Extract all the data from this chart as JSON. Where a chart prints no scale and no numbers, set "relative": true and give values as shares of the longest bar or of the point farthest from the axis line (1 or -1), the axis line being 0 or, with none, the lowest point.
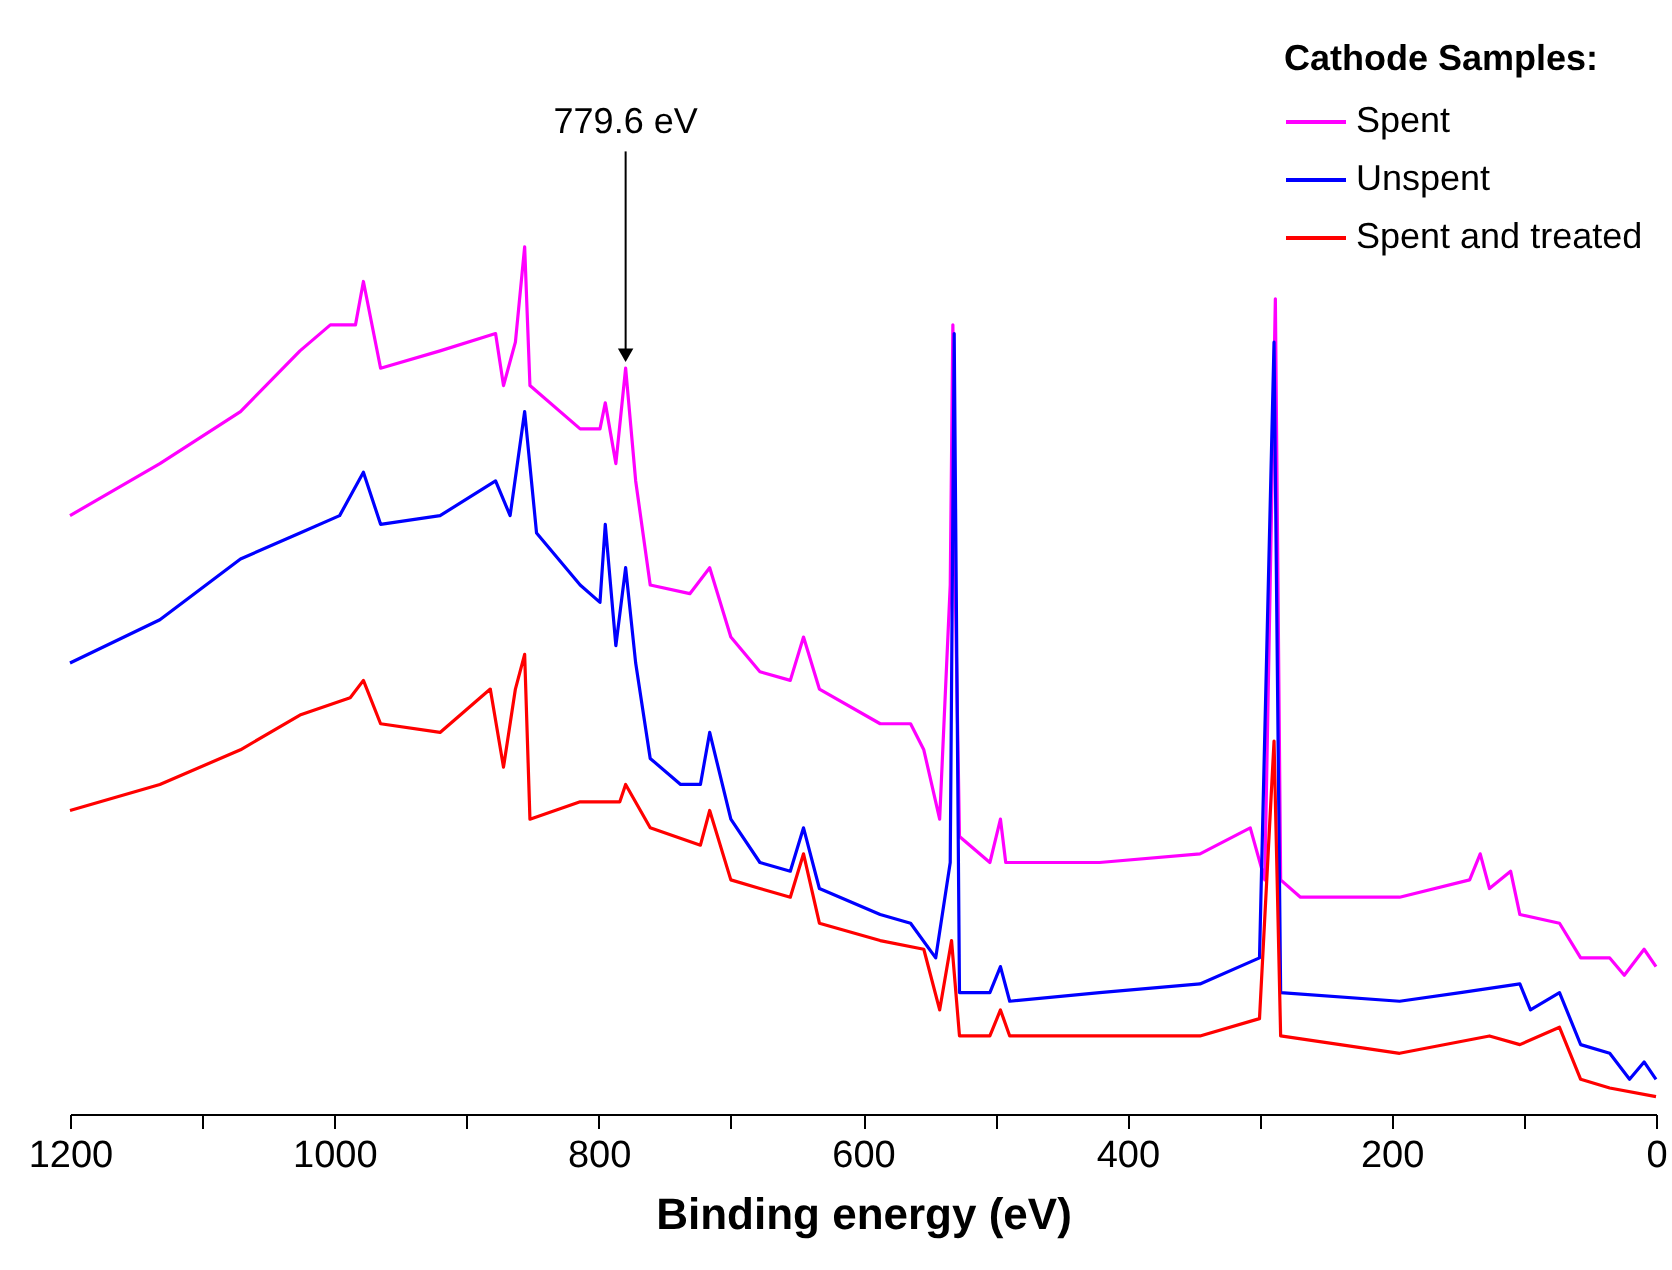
{
  "chart_data": {
    "type": "line",
    "relative": true,
    "xlabel": "Binding energy (eV)",
    "legend_title": "Cathode Samples:",
    "legend": "top right",
    "tick_labels": "x",
    "grid": false,
    "xlim": [
      1200,
      0
    ],
    "xticks": [
      1200,
      {
        "value": 1100,
        "label": null
      },
      1000,
      {
        "value": 900,
        "label": null
      },
      800,
      {
        "value": 700,
        "label": null
      },
      600,
      {
        "value": 500,
        "label": null
      },
      400,
      {
        "value": 300,
        "label": null
      },
      200,
      {
        "value": 100,
        "label": null
      },
      0
    ],
    "annotations": [
      {
        "text": "779.6 eV",
        "x": 779.6,
        "y": 0.86
      }
    ],
    "series": [
      {
        "name": "Spent",
        "color": "#ff00ff",
        "x": [
          1200,
          1132,
          1071,
          1026,
          1003,
          984,
          978,
          965,
          920,
          878,
          872,
          863,
          856,
          852,
          814,
          799,
          795,
          787,
          779.6,
          772,
          761,
          731,
          716,
          700,
          678,
          655,
          645,
          633,
          587,
          564,
          554,
          542,
          534,
          532,
          530,
          527,
          504,
          496,
          492,
          421,
          345,
          307,
          296,
          288,
          284,
          269,
          194,
          141,
          133,
          126,
          110,
          103,
          73,
          57,
          35,
          24,
          9,
          0
        ],
        "values": [
          0.69,
          0.75,
          0.81,
          0.88,
          0.91,
          0.91,
          0.96,
          0.86,
          0.88,
          0.9,
          0.84,
          0.89,
          1.0,
          0.84,
          0.79,
          0.79,
          0.82,
          0.75,
          0.86,
          0.73,
          0.61,
          0.6,
          0.63,
          0.55,
          0.51,
          0.5,
          0.55,
          0.49,
          0.45,
          0.45,
          0.42,
          0.34,
          0.61,
          0.91,
          0.59,
          0.32,
          0.29,
          0.34,
          0.29,
          0.29,
          0.3,
          0.33,
          0.27,
          0.94,
          0.27,
          0.25,
          0.25,
          0.27,
          0.3,
          0.26,
          0.28,
          0.23,
          0.22,
          0.18,
          0.18,
          0.16,
          0.19,
          0.17
        ]
      },
      {
        "name": "Unspent",
        "color": "#0000ff",
        "x": [
          1200,
          1132,
          1071,
          1026,
          996,
          978,
          965,
          920,
          878,
          867,
          856,
          847,
          814,
          799,
          795,
          787,
          779.6,
          772,
          761,
          738,
          723,
          716,
          700,
          678,
          655,
          645,
          633,
          587,
          564,
          545,
          534,
          531,
          527,
          504,
          496,
          489,
          421,
          345,
          300,
          289,
          284,
          194,
          148,
          103,
          95,
          73,
          57,
          35,
          20,
          9,
          0
        ],
        "values": [
          0.52,
          0.57,
          0.64,
          0.67,
          0.69,
          0.74,
          0.68,
          0.69,
          0.73,
          0.69,
          0.81,
          0.67,
          0.61,
          0.59,
          0.68,
          0.54,
          0.63,
          0.52,
          0.41,
          0.38,
          0.38,
          0.44,
          0.34,
          0.29,
          0.28,
          0.33,
          0.26,
          0.23,
          0.22,
          0.18,
          0.29,
          0.9,
          0.14,
          0.14,
          0.17,
          0.13,
          0.14,
          0.15,
          0.18,
          0.89,
          0.14,
          0.13,
          0.14,
          0.15,
          0.12,
          0.14,
          0.08,
          0.07,
          0.04,
          0.06,
          0.04
        ]
      },
      {
        "name": "Spent and treated",
        "color": "#ff0000",
        "x": [
          1200,
          1132,
          1071,
          1026,
          988,
          978,
          965,
          920,
          882,
          872,
          863,
          856,
          852,
          814,
          784,
          779.6,
          761,
          723,
          716,
          700,
          678,
          655,
          645,
          633,
          587,
          554,
          542,
          533,
          527,
          504,
          496,
          489,
          421,
          345,
          300,
          289,
          284,
          194,
          126,
          103,
          73,
          57,
          35,
          0
        ],
        "values": [
          0.35,
          0.38,
          0.42,
          0.46,
          0.48,
          0.5,
          0.45,
          0.44,
          0.49,
          0.4,
          0.49,
          0.53,
          0.34,
          0.36,
          0.36,
          0.38,
          0.33,
          0.31,
          0.35,
          0.27,
          0.26,
          0.25,
          0.3,
          0.22,
          0.2,
          0.19,
          0.12,
          0.2,
          0.09,
          0.09,
          0.12,
          0.09,
          0.09,
          0.09,
          0.11,
          0.43,
          0.09,
          0.07,
          0.09,
          0.08,
          0.1,
          0.04,
          0.03,
          0.02
        ]
      }
    ]
  }
}
